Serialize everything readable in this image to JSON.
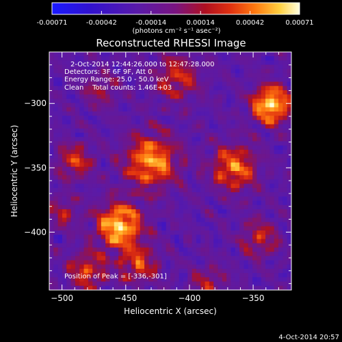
{
  "colorbar": {
    "tick_labels": [
      "-0.00071",
      "-0.00042",
      "-0.00014",
      "0.00014",
      "0.00042",
      "0.00071"
    ],
    "units": "(photons cm⁻² s⁻¹ asec⁻²)",
    "colors": [
      "#1a1aff",
      "#3a10cc",
      "#5a1aa8",
      "#7a1480",
      "#b01020",
      "#e03010",
      "#ff7a10",
      "#ffd040",
      "#ffffd0"
    ]
  },
  "chart_data": {
    "type": "heatmap",
    "title": "Reconstructed RHESSI Image",
    "xlabel": "Heliocentric X (arcsec)",
    "ylabel": "Heliocentric Y (arcsec)",
    "xlim": [
      -510,
      -320
    ],
    "ylim": [
      -445,
      -260
    ],
    "xticks": [
      -500,
      -450,
      -400,
      -350
    ],
    "yticks": [
      -300,
      -350,
      -400
    ],
    "xtick_labels": [
      "−500",
      "−450",
      "−400",
      "−350"
    ],
    "ytick_labels": [
      "−300",
      "−350",
      "−400"
    ],
    "value_range": [
      -0.00071,
      0.00071
    ],
    "peak_position": [
      -336,
      -301
    ],
    "annotations": [
      "2-Oct-2014 12:44:26.000 to 12:47:28.000",
      "Detectors: 3F 6F 9F, Att 0",
      "Energy Range: 25.0 - 50.0 keV",
      "Clean    Total counts: 1.46E+03"
    ],
    "peak_text": "Position of Peak = [-336,-301]"
  },
  "footer_date": "4-Oct-2014 20:57"
}
